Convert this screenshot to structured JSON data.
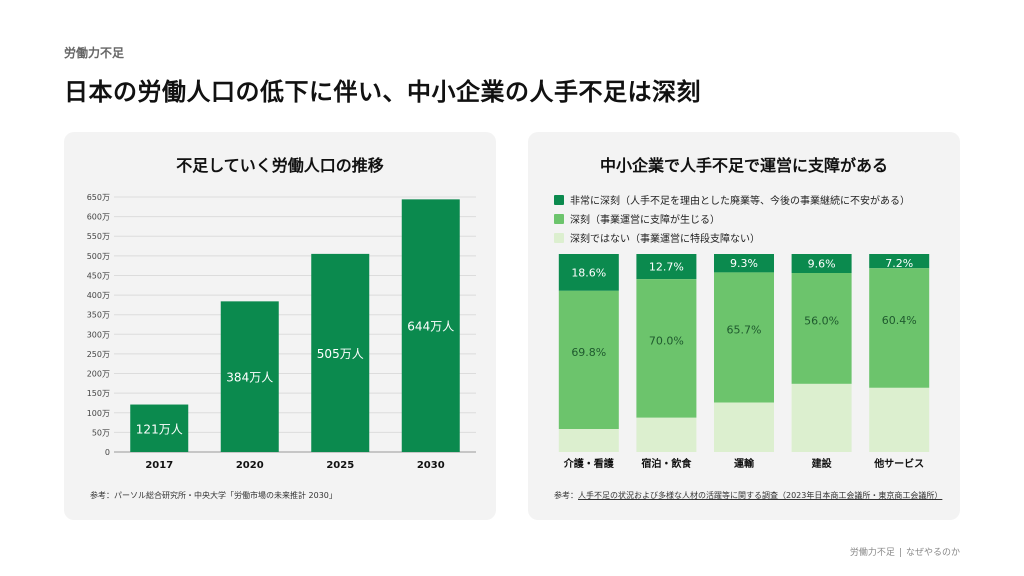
{
  "header": {
    "eyebrow": "労働力不足",
    "title": "日本の労働人口の低下に伴い、中小企業の人手不足は深刻"
  },
  "colors": {
    "dark_green": "#0b8a4e",
    "mid_green": "#6cc46c",
    "light_green": "#dcefcf",
    "card_bg": "#f3f3f3"
  },
  "left_card": {
    "title": "不足していく労働人口の推移",
    "source": "参考：パーソル総合研究所・中央大学「労働市場の未来推計 2030」"
  },
  "right_card": {
    "title": "中小企業で人手不足で運営に支障がある",
    "source_prefix": "参考：",
    "source_link": "人手不足の状況および多様な人材の活躍等に関する調査（2023年日本商工会議所・東京商工会議所）"
  },
  "footer": {
    "left": "労働力不足",
    "separator": "|",
    "right": "なぜやるのか"
  },
  "chart_data": [
    {
      "type": "bar",
      "title": "不足していく労働人口の推移",
      "categories": [
        "2017",
        "2020",
        "2025",
        "2030"
      ],
      "values": [
        121,
        384,
        505,
        644
      ],
      "data_labels": [
        "121万人",
        "384万人",
        "505万人",
        "644万人"
      ],
      "ylim": [
        0,
        650
      ],
      "y_ticks": [
        0,
        50,
        100,
        150,
        200,
        250,
        300,
        350,
        400,
        450,
        500,
        550,
        600,
        650
      ],
      "y_tick_labels": [
        "0",
        "50万",
        "100万",
        "150万",
        "200万",
        "250万",
        "300万",
        "350万",
        "400万",
        "450万",
        "500万",
        "550万",
        "600万",
        "650万"
      ],
      "grid": true,
      "color": "#0b8a4e"
    },
    {
      "type": "bar",
      "stacked": true,
      "percent": true,
      "title": "中小企業で人手不足で運営に支障がある",
      "legend_position": "top-left",
      "categories": [
        "介護・看護",
        "宿泊・飲食",
        "運輸",
        "建設",
        "他サービス"
      ],
      "series": [
        {
          "name": "非常に深刻（人手不足を理由とした廃業等、今後の事業継続に不安がある）",
          "color": "#0b8a4e",
          "values": [
            18.6,
            12.7,
            9.3,
            9.6,
            7.2
          ],
          "labels": [
            "18.6%",
            "12.7%",
            "9.3%",
            "9.6%",
            "7.2%"
          ]
        },
        {
          "name": "深刻（事業運営に支障が生じる）",
          "color": "#6cc46c",
          "values": [
            69.8,
            70.0,
            65.7,
            56.0,
            60.4
          ],
          "labels": [
            "69.8%",
            "70.0%",
            "65.7%",
            "56.0%",
            "60.4%"
          ]
        },
        {
          "name": "深刻ではない（事業運営に特段支障ない）",
          "color": "#dcefcf",
          "values": [
            11.6,
            17.3,
            25.0,
            34.4,
            32.4
          ],
          "labels": [
            "",
            "",
            "",
            "",
            ""
          ]
        }
      ]
    }
  ]
}
